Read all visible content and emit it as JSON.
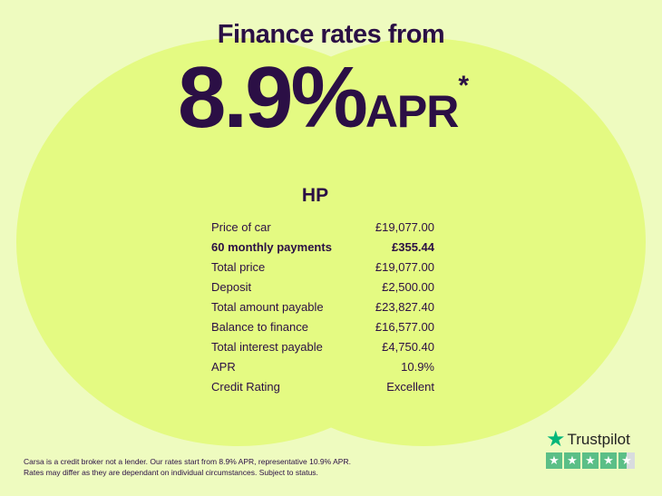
{
  "headline": {
    "title": "Finance rates from",
    "rate": "8.9%",
    "suffix": "APR",
    "asterisk": "*"
  },
  "product": "HP",
  "rows": [
    {
      "label": "Price of car",
      "value": "£19,077.00",
      "bold": false
    },
    {
      "label": "60 monthly payments",
      "value": "£355.44",
      "bold": true
    },
    {
      "label": "Total price",
      "value": "£19,077.00",
      "bold": false
    },
    {
      "label": "Deposit",
      "value": "£2,500.00",
      "bold": false
    },
    {
      "label": "Total amount payable",
      "value": "£23,827.40",
      "bold": false
    },
    {
      "label": "Balance to finance",
      "value": "£16,577.00",
      "bold": false
    },
    {
      "label": "Total interest payable",
      "value": "£4,750.40",
      "bold": false
    },
    {
      "label": "APR",
      "value": "10.9%",
      "bold": false
    },
    {
      "label": "Credit Rating",
      "value": "Excellent",
      "bold": false
    }
  ],
  "disclaimer": {
    "line1": "Carsa is a credit broker not a lender. Our rates start from 8.9% APR, representative 10.9% APR.",
    "line2": "Rates may differ as they are dependant on individual circumstances. Subject to status."
  },
  "trustpilot": {
    "name": "Trustpilot",
    "rating_stars": 4.5,
    "star_color": "#04b67a"
  },
  "colors": {
    "text": "#2b0f45",
    "background": "#eefbbf",
    "circle": "#e4fa82"
  }
}
